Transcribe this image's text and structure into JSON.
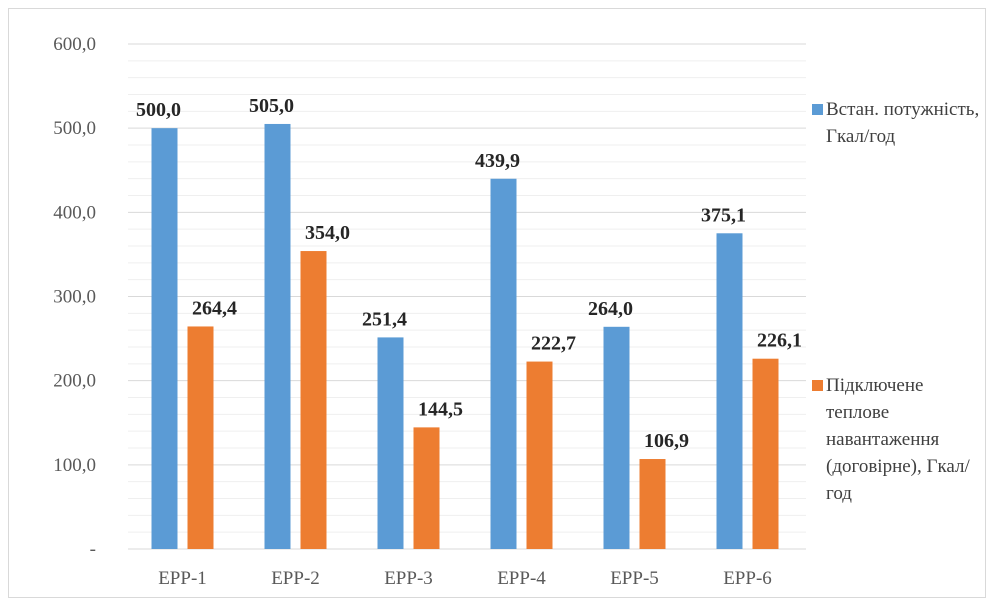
{
  "chart_data": {
    "type": "bar",
    "categories": [
      "ЕРР-1",
      "ЕРР-2",
      "ЕРР-3",
      "ЕРР-4",
      "ЕРР-5",
      "ЕРР-6"
    ],
    "series": [
      {
        "name": "Встан. потужність, Гкал/год",
        "values": [
          500.0,
          505.0,
          251.4,
          439.9,
          264.0,
          375.1
        ],
        "labels": [
          "500,0",
          "505,0",
          "251,4",
          "439,9",
          "264,0",
          "375,1"
        ],
        "color": "#5b9bd5"
      },
      {
        "name": "Підключене теплове навантаження (договірне), Гкал/год",
        "values": [
          264.4,
          354.0,
          144.5,
          222.7,
          106.9,
          226.1
        ],
        "labels": [
          "264,4",
          "354,0",
          "144,5",
          "222,7",
          "106,9",
          "226,1"
        ],
        "color": "#ed7d31"
      }
    ],
    "ylim": [
      0,
      600
    ],
    "yticks": [
      0,
      100,
      200,
      300,
      400,
      500,
      600
    ],
    "ytick_labels": [
      "-",
      "100,0",
      "200,0",
      "300,0",
      "400,0",
      "500,0",
      "600,0"
    ],
    "grid": true,
    "legend": "right",
    "title": "",
    "xlabel": "",
    "ylabel": ""
  }
}
